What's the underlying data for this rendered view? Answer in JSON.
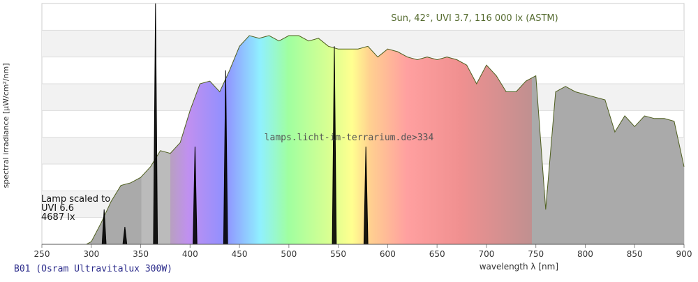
{
  "chart_data": {
    "type": "spectrum",
    "title": "B01 (Osram Ultravitalux 300W)",
    "x_label": "wavelength λ [nm]",
    "y_label": "spectral irradiance [µW/cm²/nm]",
    "watermark": "lamps.licht-im-terrarium.de>334",
    "annotations": [
      "Lamp scaled to",
      "UVI 6.6",
      "4687 lx"
    ],
    "xlim": [
      250,
      900
    ],
    "xticks": [
      250,
      300,
      350,
      400,
      450,
      500,
      550,
      600,
      650,
      700,
      750,
      800,
      850,
      900
    ],
    "ylim": [
      0,
      9
    ],
    "ygrid": [
      1,
      2,
      3,
      4,
      5,
      6,
      7,
      8
    ],
    "series": [
      {
        "name": "Sun, 42°, UVI 3.7, 116 000 lx (ASTM)",
        "color": "#4f5f1f",
        "x": [
          295,
          300,
          310,
          320,
          330,
          340,
          350,
          360,
          370,
          380,
          390,
          400,
          410,
          420,
          430,
          440,
          450,
          460,
          470,
          480,
          490,
          500,
          510,
          520,
          530,
          540,
          550,
          560,
          570,
          580,
          590,
          600,
          610,
          620,
          630,
          640,
          650,
          660,
          670,
          680,
          690,
          700,
          710,
          720,
          730,
          740,
          750,
          760,
          770,
          780,
          790,
          800,
          810,
          820,
          830,
          840,
          850,
          860,
          870,
          880,
          890,
          900
        ],
        "values": [
          0,
          0.1,
          0.8,
          1.6,
          2.2,
          2.3,
          2.5,
          2.9,
          3.5,
          3.4,
          3.8,
          5.0,
          6.0,
          6.1,
          5.7,
          6.5,
          7.4,
          7.8,
          7.7,
          7.8,
          7.6,
          7.8,
          7.8,
          7.6,
          7.7,
          7.4,
          7.3,
          7.3,
          7.3,
          7.4,
          7.0,
          7.3,
          7.2,
          7.0,
          6.9,
          7.0,
          6.9,
          7.0,
          6.9,
          6.7,
          6.0,
          6.7,
          6.3,
          5.7,
          5.7,
          6.1,
          6.3,
          1.3,
          5.7,
          5.9,
          5.7,
          5.6,
          5.5,
          5.4,
          4.2,
          4.8,
          4.4,
          4.8,
          4.7,
          4.7,
          4.6,
          2.9
        ]
      },
      {
        "name": "Osram Ultravitalux 300W",
        "color": "#000000",
        "x": [
          290,
          311,
          313,
          315,
          332,
          334,
          336,
          363,
          365,
          367,
          403,
          405,
          407,
          434,
          436,
          438,
          544,
          546,
          548,
          576,
          578,
          580,
          880
        ],
        "values": [
          0,
          0,
          1.3,
          0,
          0,
          0.65,
          0,
          0,
          9,
          0,
          0,
          3.65,
          0,
          0,
          6.5,
          0,
          0,
          7.4,
          0,
          0,
          3.65,
          0,
          0
        ]
      }
    ]
  }
}
